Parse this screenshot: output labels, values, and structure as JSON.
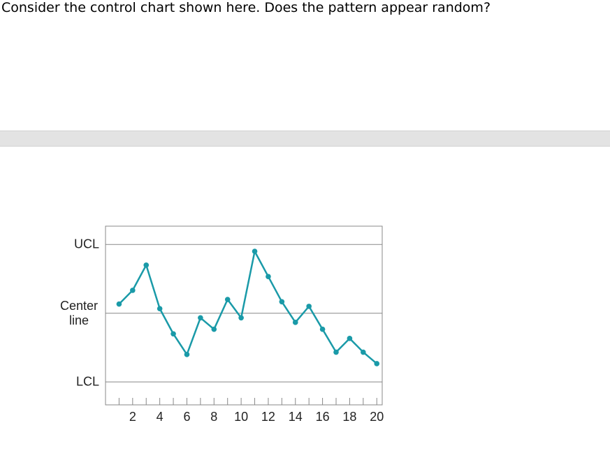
{
  "question": "Consider the control chart shown here. Does the pattern appear random?",
  "chart_data": {
    "type": "line",
    "x": [
      1,
      2,
      3,
      4,
      5,
      6,
      7,
      8,
      9,
      10,
      11,
      12,
      13,
      14,
      15,
      16,
      17,
      18,
      19,
      20
    ],
    "values": [
      0.4,
      1.0,
      2.1,
      0.2,
      -0.9,
      -1.8,
      -0.2,
      -0.7,
      0.6,
      -0.2,
      2.7,
      1.6,
      0.5,
      -0.4,
      0.3,
      -0.7,
      -1.7,
      -1.1,
      -1.7,
      -2.2
    ],
    "color": "#1a9aa8",
    "xlim": [
      0,
      20.4
    ],
    "ylim": [
      -4,
      3.8
    ],
    "xticks": [
      2,
      4,
      6,
      8,
      10,
      12,
      14,
      16,
      18,
      20
    ],
    "xminorticks": [
      1,
      3,
      5,
      7,
      9,
      11,
      13,
      15,
      17,
      19
    ],
    "yticks": [
      {
        "value": 3,
        "label": "UCL"
      },
      {
        "value": 0,
        "label": "Center line"
      },
      {
        "value": -3,
        "label": "LCL"
      }
    ],
    "grid": true
  }
}
